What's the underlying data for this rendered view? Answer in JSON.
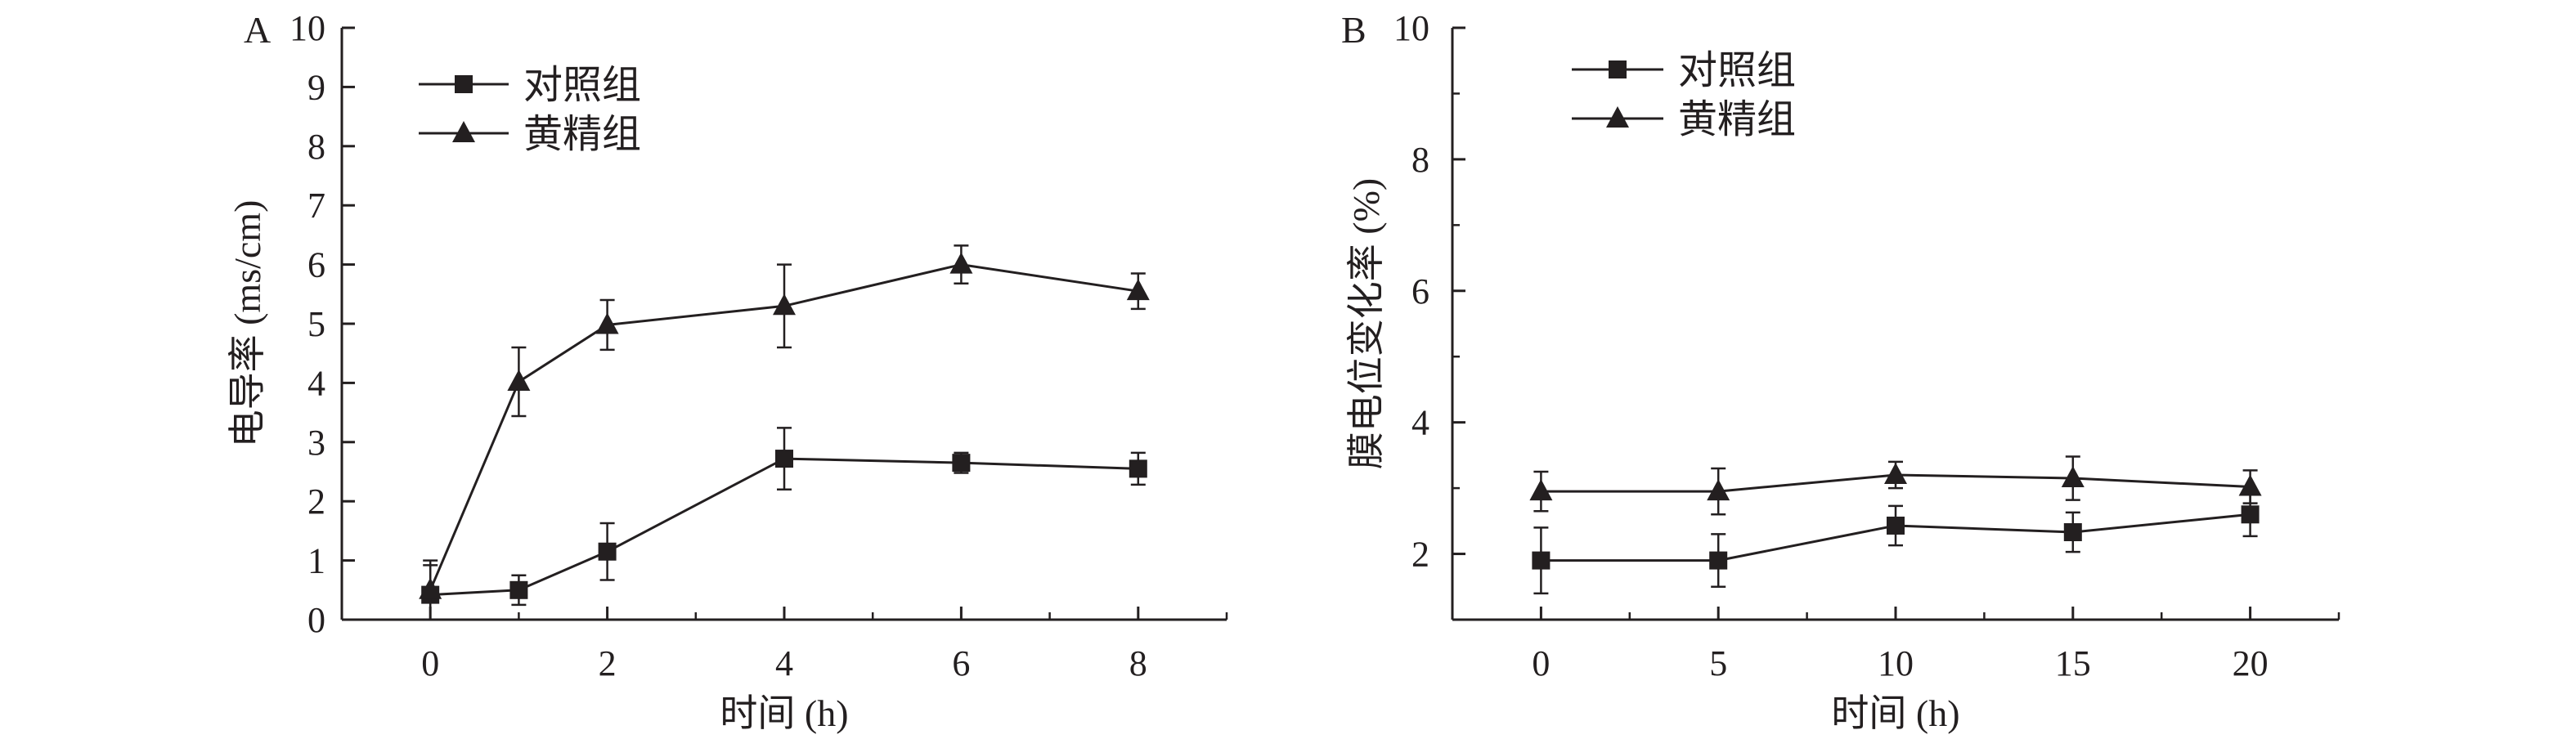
{
  "chart_data": [
    {
      "panel_label": "A",
      "type": "line",
      "title": "",
      "xlabel": "时间 (h)",
      "ylabel": "电导率 (ms/cm)",
      "xlim": [
        -1,
        9
      ],
      "ylim": [
        0,
        10
      ],
      "xticks": [
        0,
        2,
        4,
        6,
        8
      ],
      "yticks": [
        0,
        1,
        2,
        3,
        4,
        5,
        6,
        7,
        8,
        9,
        10
      ],
      "x_minor_ticks": [
        -1,
        1,
        3,
        5,
        7,
        9
      ],
      "legend_position": "top-left",
      "grid": false,
      "series": [
        {
          "name": "对照组",
          "marker": "square",
          "x": [
            0,
            1,
            2,
            4,
            6,
            8
          ],
          "y": [
            0.42,
            0.5,
            1.15,
            2.72,
            2.65,
            2.55
          ],
          "error": [
            0.5,
            0.25,
            0.48,
            0.52,
            0.17,
            0.27
          ]
        },
        {
          "name": "黄精组",
          "marker": "triangle",
          "x": [
            0,
            1,
            2,
            4,
            6,
            8
          ],
          "y": [
            0.5,
            4.02,
            4.98,
            5.3,
            6.0,
            5.55
          ],
          "error": [
            0.5,
            0.58,
            0.42,
            0.7,
            0.32,
            0.3
          ]
        }
      ]
    },
    {
      "panel_label": "B",
      "type": "line",
      "title": "",
      "xlabel": "时间 (h)",
      "ylabel": "膜电位变化率 (%)",
      "xlim": [
        -2.5,
        22.5
      ],
      "ylim": [
        1,
        10
      ],
      "xticks": [
        0,
        5,
        10,
        15,
        20
      ],
      "yticks": [
        2,
        4,
        6,
        8,
        10
      ],
      "y_minor_ticks": [
        1,
        3,
        5,
        7,
        9
      ],
      "x_minor_ticks": [
        -2.5,
        2.5,
        7.5,
        12.5,
        17.5,
        22.5
      ],
      "legend_position": "top-left",
      "grid": false,
      "series": [
        {
          "name": "对照组",
          "marker": "square",
          "x": [
            0,
            5,
            10,
            15,
            20
          ],
          "y": [
            1.9,
            1.9,
            2.43,
            2.33,
            2.6
          ],
          "error": [
            0.5,
            0.4,
            0.3,
            0.3,
            0.33
          ]
        },
        {
          "name": "黄精组",
          "marker": "triangle",
          "x": [
            0,
            5,
            10,
            15,
            20
          ],
          "y": [
            2.95,
            2.95,
            3.2,
            3.15,
            3.02
          ],
          "error": [
            0.3,
            0.35,
            0.2,
            0.33,
            0.25
          ]
        }
      ]
    }
  ]
}
